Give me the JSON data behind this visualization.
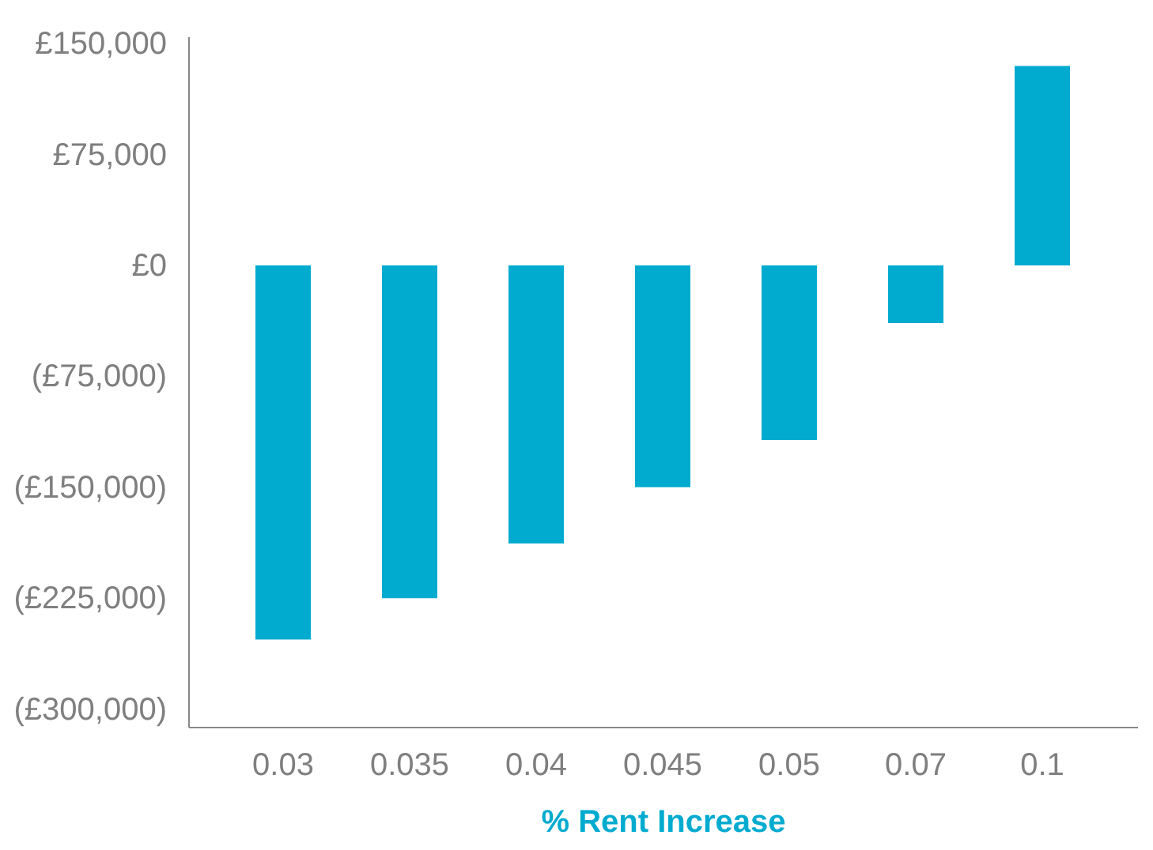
{
  "chart_data": {
    "type": "bar",
    "xlabel": "% Rent Increase",
    "categories": [
      "0.03",
      "0.035",
      "0.04",
      "0.045",
      "0.05",
      "0.07",
      "0.1"
    ],
    "values": [
      -253000,
      -225000,
      -188000,
      -150000,
      -118000,
      -39000,
      135000
    ],
    "color": "#00abcf",
    "ylim": [
      -312000,
      155000
    ],
    "yticks": [
      {
        "value": 150000,
        "label": "£150,000"
      },
      {
        "value": 75000,
        "label": "£75,000"
      },
      {
        "value": 0,
        "label": "£0"
      },
      {
        "value": -75000,
        "label": "(£75,000)"
      },
      {
        "value": -150000,
        "label": "(£150,000)"
      },
      {
        "value": -225000,
        "label": "(£225,000)"
      },
      {
        "value": -300000,
        "label": "(£300,000)"
      }
    ],
    "grid": false
  }
}
